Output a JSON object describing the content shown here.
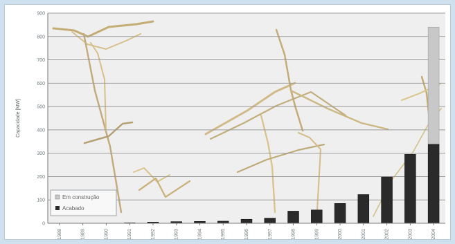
{
  "chart_data": {
    "type": "bar",
    "ylabel": "Capacidade [MW]",
    "categories": [
      "1988",
      "1989",
      "1990",
      "1991",
      "1992",
      "1993",
      "1994",
      "1995",
      "1996",
      "1997",
      "1998",
      "1999",
      "2000",
      "2001",
      "2002",
      "2003",
      "2004"
    ],
    "series": [
      {
        "name": "Em construção",
        "color": "#c8c8c8",
        "values": [
          0,
          0,
          0,
          0,
          0,
          0,
          0,
          0,
          0,
          0,
          0,
          0,
          0,
          0,
          0,
          0,
          500
        ]
      },
      {
        "name": "Acabado",
        "color": "#2a2a2a",
        "values": [
          0,
          0,
          0,
          2,
          5,
          7,
          8,
          9,
          17,
          22,
          52,
          57,
          85,
          123,
          198,
          295,
          340
        ]
      }
    ],
    "stacked": true,
    "ylim": [
      0,
      900
    ],
    "yticks": [
      0,
      100,
      200,
      300,
      400,
      500,
      600,
      700,
      800,
      900
    ],
    "grid": true,
    "legend_position": "bottom-left"
  }
}
